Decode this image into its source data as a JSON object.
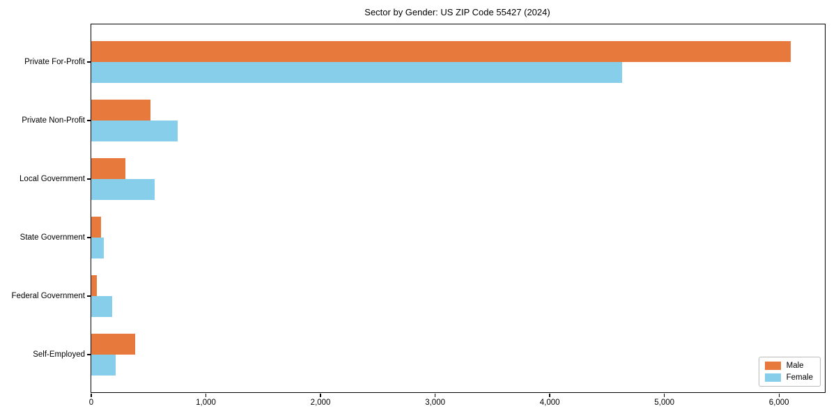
{
  "title": "Sector by Gender: US ZIP Code 55427 (2024)",
  "chart_data": {
    "type": "bar",
    "orientation": "horizontal",
    "title": "Sector by Gender: US ZIP Code 55427 (2024)",
    "categories": [
      "Private For-Profit",
      "Private Non-Profit",
      "Local Government",
      "State Government",
      "Federal Government",
      "Self-Employed"
    ],
    "series": [
      {
        "name": "Male",
        "color": "#E8793D",
        "values": [
          6100,
          515,
          295,
          85,
          50,
          380
        ]
      },
      {
        "name": "Female",
        "color": "#87CEEB",
        "values": [
          4630,
          755,
          550,
          110,
          180,
          210
        ]
      }
    ],
    "xlim": [
      0,
      6400
    ],
    "xticks": [
      0,
      1000,
      2000,
      3000,
      4000,
      5000,
      6000
    ],
    "xtick_labels": [
      "0",
      "1,000",
      "2,000",
      "3,000",
      "4,000",
      "5,000",
      "6,000"
    ],
    "grid": false,
    "legend_position": "lower right",
    "xlabel": "",
    "ylabel": ""
  }
}
